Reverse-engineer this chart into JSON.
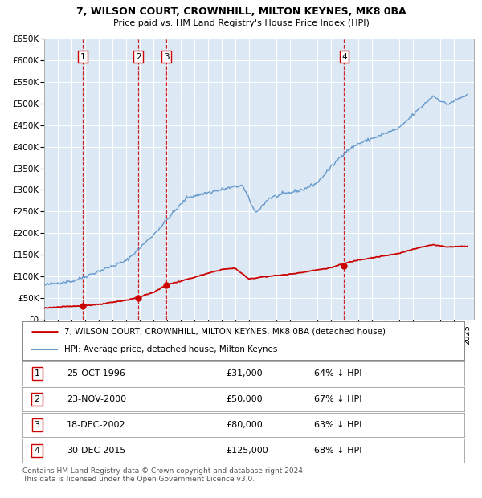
{
  "title1": "7, WILSON COURT, CROWNHILL, MILTON KEYNES, MK8 0BA",
  "title2": "Price paid vs. HM Land Registry's House Price Index (HPI)",
  "xlim": [
    1994.0,
    2025.5
  ],
  "ylim": [
    0,
    650000
  ],
  "yticks": [
    0,
    50000,
    100000,
    150000,
    200000,
    250000,
    300000,
    350000,
    400000,
    450000,
    500000,
    550000,
    600000,
    650000
  ],
  "bg_color": "#dce9f5",
  "grid_color": "#ffffff",
  "sale_dates": [
    1996.82,
    2000.9,
    2002.97,
    2015.99
  ],
  "sale_prices": [
    31000,
    50000,
    80000,
    125000
  ],
  "sale_labels": [
    "1",
    "2",
    "3",
    "4"
  ],
  "red_line_color": "#cc0000",
  "blue_line_color": "#6699cc",
  "vline_color": "#cc0000",
  "legend_line1": "7, WILSON COURT, CROWNHILL, MILTON KEYNES, MK8 0BA (detached house)",
  "legend_line2": "HPI: Average price, detached house, Milton Keynes",
  "table_rows": [
    [
      "1",
      "25-OCT-1996",
      "£31,000",
      "64% ↓ HPI"
    ],
    [
      "2",
      "23-NOV-2000",
      "£50,000",
      "67% ↓ HPI"
    ],
    [
      "3",
      "18-DEC-2002",
      "£80,000",
      "63% ↓ HPI"
    ],
    [
      "4",
      "30-DEC-2015",
      "£125,000",
      "68% ↓ HPI"
    ]
  ],
  "footer": "Contains HM Land Registry data © Crown copyright and database right 2024.\nThis data is licensed under the Open Government Licence v3.0."
}
